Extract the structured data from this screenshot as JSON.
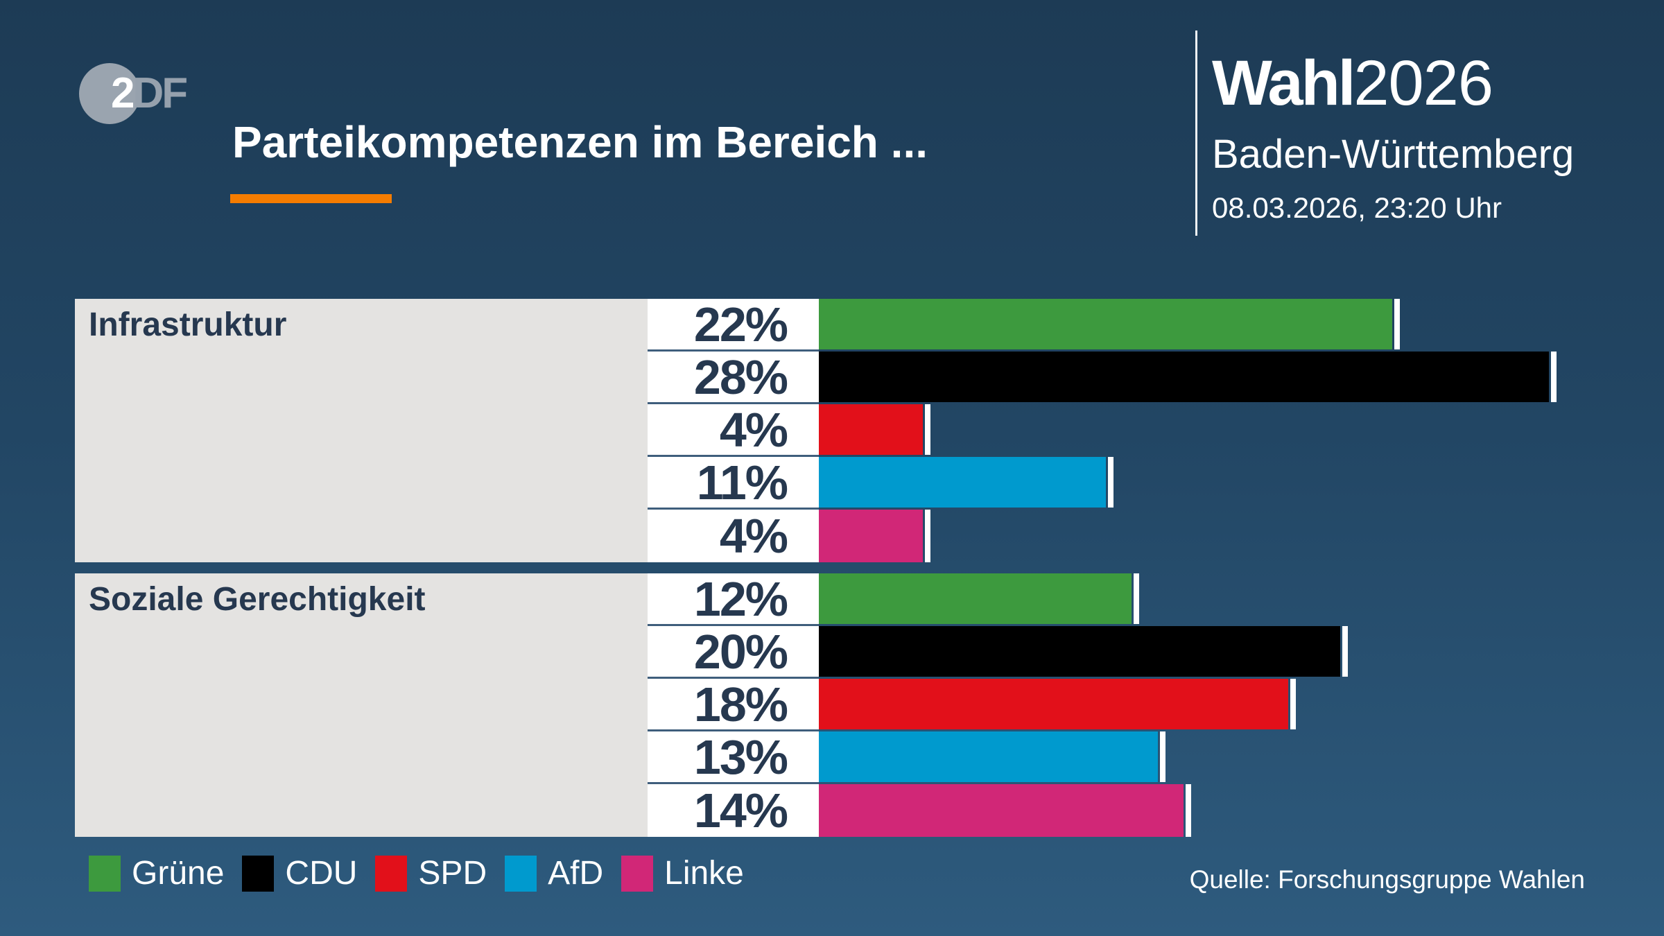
{
  "header": {
    "logo_part_2": "2",
    "logo_part_df": "DF",
    "title": "Parteikompetenzen im Bereich ...",
    "brand_bold": "Wahl",
    "brand_year": "2026",
    "region": "Baden-Württemberg",
    "datetime": "08.03.2026, 23:20 Uhr"
  },
  "footer": {
    "source": "Quelle: Forschungsgruppe Wahlen"
  },
  "colors": {
    "background_top": "#1d3b55",
    "background_bottom": "#2e5b7e",
    "accent_orange": "#f47c00",
    "panel_gray": "#e4e3e1",
    "text_navy": "#26384f",
    "row_separator": "#3f5e7c",
    "text_white": "#ffffff"
  },
  "chart_data": {
    "type": "bar",
    "orientation": "horizontal",
    "title": "Parteikompetenzen im Bereich ...",
    "unit": "%",
    "categories": [
      "Infrastruktur",
      "Soziale Gerechtigkeit"
    ],
    "series": [
      {
        "name": "Grüne",
        "color": "#3d9a3e",
        "values": [
          22,
          12
        ]
      },
      {
        "name": "CDU",
        "color": "#000000",
        "values": [
          28,
          20
        ]
      },
      {
        "name": "SPD",
        "color": "#e2101a",
        "values": [
          4,
          18
        ]
      },
      {
        "name": "AfD",
        "color": "#009ace",
        "values": [
          11,
          13
        ]
      },
      {
        "name": "Linke",
        "color": "#d12777",
        "values": [
          4,
          14
        ]
      }
    ],
    "value_labels": [
      [
        "22%",
        "28%",
        "4%",
        "11%",
        "4%"
      ],
      [
        "12%",
        "20%",
        "18%",
        "13%",
        "14%"
      ]
    ],
    "xlim": [
      0,
      30
    ],
    "grid": false,
    "legend_position": "bottom"
  },
  "legend": [
    {
      "label": "Grüne",
      "color": "#3d9a3e"
    },
    {
      "label": "CDU",
      "color": "#000000"
    },
    {
      "label": "SPD",
      "color": "#e2101a"
    },
    {
      "label": "AfD",
      "color": "#009ace"
    },
    {
      "label": "Linke",
      "color": "#d12777"
    }
  ]
}
